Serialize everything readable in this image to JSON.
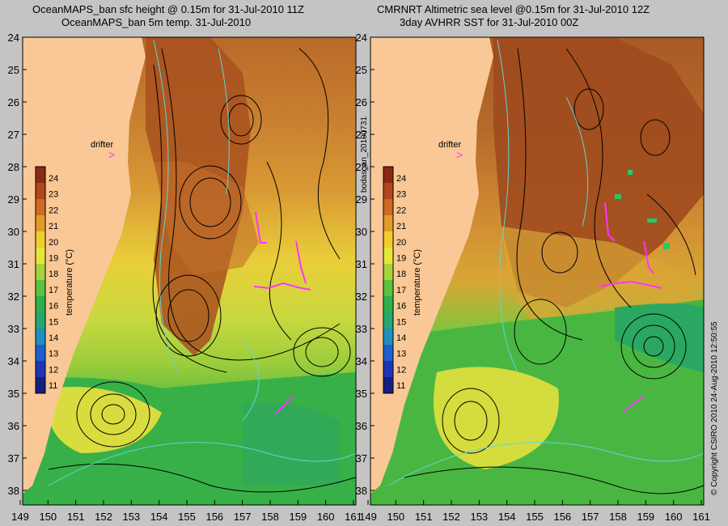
{
  "left_panel": {
    "title_line1": "OceanMAPS_ban sfc height @ 0.15m for 31-Jul-2010 11Z",
    "title_line2": "OceanMAPS_ban 5m temp. 31-Jul-2010",
    "drifter_label": "drifter"
  },
  "right_panel": {
    "title_line1": "CMRNRT Altimetric sea level  @0.15m  for 31-Jul-2010 12Z",
    "title_line2": "3day AVHRR SST for 31-Jul-2010 00Z",
    "drifter_label": "drifter"
  },
  "y_axis_labels": [
    "24",
    "25",
    "26",
    "27",
    "28",
    "29",
    "30",
    "31",
    "32",
    "33",
    "34",
    "35",
    "36",
    "37",
    "38"
  ],
  "x_axis_labels": [
    "149",
    "150",
    "151",
    "152",
    "153",
    "154",
    "155",
    "156",
    "157",
    "158",
    "159",
    "160",
    "161"
  ],
  "colorbar": {
    "label": "temperature (°C)",
    "ticks": [
      "24",
      "23",
      "22",
      "21",
      "20",
      "19",
      "18",
      "17",
      "16",
      "15",
      "14",
      "13",
      "12",
      "11"
    ],
    "colors": [
      "#8a2a12",
      "#b2461c",
      "#cd6a23",
      "#e39a2a",
      "#f2cc2e",
      "#e6e63a",
      "#a8d23c",
      "#5cc040",
      "#2fb04c",
      "#24a872",
      "#1f8fc0",
      "#1e5fd0",
      "#1d35b8",
      "#15207e"
    ]
  },
  "side_label": "bodas_an_20100731",
  "copyright": "© Copyright CSIRO 2010   24-Aug-2010 12:50:55"
}
